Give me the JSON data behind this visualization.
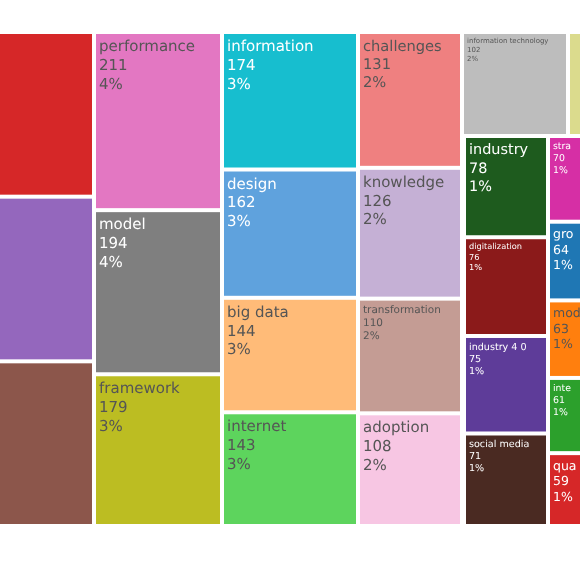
{
  "chart_data": {
    "type": "other",
    "categories": [
      null,
      null,
      null,
      "performance",
      "model",
      "framework",
      "information",
      "design",
      "big data",
      "internet",
      "challenges",
      "knowledge",
      "transformation",
      "adoption",
      "information technology",
      null,
      "industry",
      "digitalization",
      "industry 4 0",
      "social media",
      "stra",
      "gro",
      "mod",
      "inte",
      "qua"
    ],
    "values": [
      null,
      null,
      null,
      211,
      194,
      179,
      174,
      162,
      144,
      143,
      131,
      126,
      110,
      108,
      102,
      null,
      78,
      76,
      75,
      71,
      70,
      64,
      63,
      61,
      59
    ],
    "data_labels": true,
    "annotations": [
      {
        "text": "4%",
        "x": "performance"
      },
      {
        "text": "4%",
        "x": "model"
      },
      {
        "text": "3%",
        "x": "framework"
      },
      {
        "text": "3%",
        "x": "information"
      },
      {
        "text": "3%",
        "x": "design"
      },
      {
        "text": "3%",
        "x": "big data"
      },
      {
        "text": "3%",
        "x": "internet"
      },
      {
        "text": "2%",
        "x": "challenges"
      },
      {
        "text": "2%",
        "x": "knowledge"
      },
      {
        "text": "2%",
        "x": "transformation"
      },
      {
        "text": "2%",
        "x": "adoption"
      },
      {
        "text": "2%",
        "x": "information technology"
      },
      {
        "text": "1%",
        "x": "industry"
      },
      {
        "text": "1%",
        "x": "digitalization"
      },
      {
        "text": "1%",
        "x": "industry 4 0"
      },
      {
        "text": "1%",
        "x": "social media"
      },
      {
        "text": "1%",
        "x": "stra"
      },
      {
        "text": "1%",
        "x": "gro"
      },
      {
        "text": "1%",
        "x": "mod"
      },
      {
        "text": "1%",
        "x": "inte"
      },
      {
        "text": "1%",
        "x": "qua"
      }
    ],
    "colors": [
      "#d62728",
      "#9467bd",
      "#8c564b",
      "#e377c2",
      "#7f7f7f",
      "#bcbd22",
      "#17becf",
      "#5fa2dd",
      "#ffbb78",
      "#5dd45d",
      "#ef8080",
      "#c5b0d5",
      "#c49c94",
      "#f7c6e3",
      "#bdbdbd",
      "#dbdb8d",
      "#1e5b1e",
      "#8b1a1a",
      "#5e3c99",
      "#4a2a22",
      "#d62fa5",
      "#1f77b4",
      "#ff7f0e",
      "#2ca02c",
      "#d62728"
    ]
  }
}
